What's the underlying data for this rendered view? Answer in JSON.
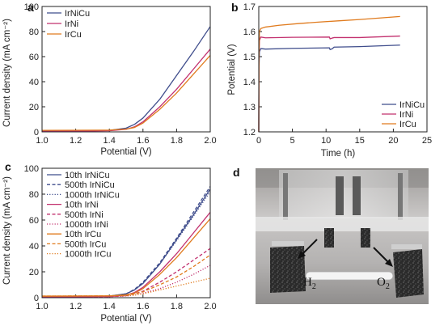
{
  "panels": [
    {
      "id": "a",
      "label": "a",
      "type": "line",
      "xlabel": "Potential (V)",
      "ylabel": "Current density (mA cm⁻²)",
      "xlim": [
        1.0,
        2.0
      ],
      "ylim": [
        0,
        100
      ],
      "xticks": [
        1.0,
        1.2,
        1.4,
        1.6,
        1.8,
        2.0
      ],
      "xtick_labels": [
        "1.0",
        "1.2",
        "1.4",
        "1.6",
        "1.8",
        "2.0"
      ],
      "yticks": [
        0,
        20,
        40,
        60,
        80,
        100
      ],
      "ytick_labels": [
        "0",
        "20",
        "40",
        "60",
        "80",
        "100"
      ],
      "legend_position": "top-left",
      "series": [
        {
          "name": "IrNiCu",
          "color": "#3f4d8c",
          "dash": "solid",
          "x": [
            1.0,
            1.2,
            1.4,
            1.5,
            1.55,
            1.6,
            1.7,
            1.8,
            1.9,
            2.0
          ],
          "y": [
            0.8,
            0.9,
            1.2,
            3,
            6,
            11,
            26,
            45,
            64,
            84
          ]
        },
        {
          "name": "IrNi",
          "color": "#c2306e",
          "dash": "solid",
          "x": [
            1.0,
            1.2,
            1.4,
            1.5,
            1.55,
            1.6,
            1.7,
            1.8,
            1.9,
            2.0
          ],
          "y": [
            0.5,
            0.6,
            0.9,
            2,
            4,
            8,
            20,
            34,
            50,
            66
          ]
        },
        {
          "name": "IrCu",
          "color": "#e07b1e",
          "dash": "solid",
          "x": [
            1.0,
            1.2,
            1.4,
            1.5,
            1.55,
            1.6,
            1.7,
            1.8,
            1.9,
            2.0
          ],
          "y": [
            1.2,
            1.3,
            1.4,
            2.2,
            3.5,
            7,
            18,
            31,
            46,
            61
          ]
        }
      ]
    },
    {
      "id": "b",
      "label": "b",
      "type": "line",
      "xlabel": "Time (h)",
      "ylabel": "Potential (V)",
      "xlim": [
        0,
        25
      ],
      "ylim": [
        1.2,
        1.7
      ],
      "xticks": [
        0,
        5,
        10,
        15,
        20,
        25
      ],
      "xtick_labels": [
        "0",
        "5",
        "10",
        "15",
        "20",
        "25"
      ],
      "yticks": [
        1.2,
        1.3,
        1.4,
        1.5,
        1.6,
        1.7
      ],
      "ytick_labels": [
        "1.2",
        "1.3",
        "1.4",
        "1.5",
        "1.6",
        "1.7"
      ],
      "legend_position": "bottom-right",
      "series": [
        {
          "name": "IrNiCu",
          "color": "#3f4d8c",
          "dash": "solid",
          "x": [
            0,
            0.03,
            0.1,
            0.3,
            1,
            5,
            10.5,
            10.6,
            10.9,
            11.2,
            15,
            21
          ],
          "y": [
            1.2,
            1.45,
            1.52,
            1.532,
            1.53,
            1.533,
            1.535,
            1.528,
            1.531,
            1.538,
            1.54,
            1.546
          ]
        },
        {
          "name": "IrNi",
          "color": "#c2306e",
          "dash": "solid",
          "x": [
            0,
            0.03,
            0.1,
            0.3,
            1,
            5,
            10.5,
            10.6,
            10.9,
            11.2,
            15,
            21
          ],
          "y": [
            1.2,
            1.5,
            1.565,
            1.578,
            1.575,
            1.577,
            1.578,
            1.571,
            1.574,
            1.576,
            1.576,
            1.582
          ]
        },
        {
          "name": "IrCu",
          "color": "#e07b1e",
          "dash": "solid",
          "x": [
            0,
            0.03,
            0.1,
            0.3,
            1,
            3,
            6,
            9,
            12,
            15,
            18,
            21
          ],
          "y": [
            1.2,
            1.5,
            1.6,
            1.612,
            1.618,
            1.625,
            1.632,
            1.638,
            1.643,
            1.648,
            1.654,
            1.66
          ]
        }
      ]
    },
    {
      "id": "c",
      "label": "c",
      "type": "line",
      "xlabel": "Potential (V)",
      "ylabel": "Current density (mA cm⁻²)",
      "xlim": [
        1.0,
        2.0
      ],
      "ylim": [
        0,
        100
      ],
      "xticks": [
        1.0,
        1.2,
        1.4,
        1.6,
        1.8,
        2.0
      ],
      "xtick_labels": [
        "1.0",
        "1.2",
        "1.4",
        "1.6",
        "1.8",
        "2.0"
      ],
      "yticks": [
        0,
        20,
        40,
        60,
        80,
        100
      ],
      "ytick_labels": [
        "0",
        "20",
        "40",
        "60",
        "80",
        "100"
      ],
      "legend_position": "top-left",
      "series": [
        {
          "name": "10th IrNiCu",
          "color": "#3f4d8c",
          "dash": "solid",
          "x": [
            1.0,
            1.2,
            1.4,
            1.5,
            1.55,
            1.6,
            1.7,
            1.8,
            1.9,
            2.0
          ],
          "y": [
            0.8,
            0.9,
            1.2,
            3,
            6,
            11,
            26,
            45,
            64,
            84
          ]
        },
        {
          "name": "500th IrNiCu",
          "color": "#3f4d8c",
          "dash": "dashed",
          "x": [
            1.0,
            1.2,
            1.4,
            1.5,
            1.55,
            1.6,
            1.7,
            1.8,
            1.9,
            2.0
          ],
          "y": [
            0.8,
            0.9,
            1.2,
            3,
            6.5,
            12,
            27,
            46,
            66,
            86
          ]
        },
        {
          "name": "1000th IrNiCu",
          "color": "#3f4d8c",
          "dash": "dotted",
          "x": [
            1.0,
            1.2,
            1.4,
            1.5,
            1.55,
            1.6,
            1.7,
            1.8,
            1.9,
            2.0
          ],
          "y": [
            0.8,
            0.9,
            1.2,
            3,
            6,
            11,
            26,
            44,
            63,
            82
          ]
        },
        {
          "name": "10th IrNi",
          "color": "#c2306e",
          "dash": "solid",
          "x": [
            1.0,
            1.2,
            1.4,
            1.5,
            1.55,
            1.6,
            1.7,
            1.8,
            1.9,
            2.0
          ],
          "y": [
            0.5,
            0.6,
            0.9,
            2,
            4,
            8,
            20,
            34,
            50,
            66
          ]
        },
        {
          "name": "500th IrNi",
          "color": "#c2306e",
          "dash": "dashed",
          "x": [
            1.0,
            1.2,
            1.4,
            1.5,
            1.55,
            1.6,
            1.7,
            1.8,
            1.9,
            2.0
          ],
          "y": [
            0.5,
            0.6,
            0.8,
            1.5,
            3,
            5,
            12,
            20,
            29,
            38
          ]
        },
        {
          "name": "1000th IrNi",
          "color": "#c2306e",
          "dash": "dotted",
          "x": [
            1.0,
            1.2,
            1.4,
            1.5,
            1.55,
            1.6,
            1.7,
            1.8,
            1.9,
            2.0
          ],
          "y": [
            0.5,
            0.6,
            0.8,
            1.2,
            2,
            3.5,
            7,
            12,
            18,
            25
          ]
        },
        {
          "name": "10th IrCu",
          "color": "#e07b1e",
          "dash": "solid",
          "x": [
            1.0,
            1.2,
            1.4,
            1.5,
            1.55,
            1.6,
            1.7,
            1.8,
            1.9,
            2.0
          ],
          "y": [
            1.2,
            1.3,
            1.4,
            2.2,
            3.5,
            7,
            18,
            31,
            46,
            61
          ]
        },
        {
          "name": "500th IrCu",
          "color": "#e07b1e",
          "dash": "dashed",
          "x": [
            1.0,
            1.2,
            1.4,
            1.5,
            1.55,
            1.6,
            1.7,
            1.8,
            1.9,
            2.0
          ],
          "y": [
            1.2,
            1.3,
            1.4,
            1.8,
            2.8,
            4.5,
            10,
            16,
            24,
            33
          ]
        },
        {
          "name": "1000th IrCu",
          "color": "#e07b1e",
          "dash": "dotted",
          "x": [
            1.0,
            1.2,
            1.4,
            1.5,
            1.55,
            1.6,
            1.7,
            1.8,
            1.9,
            2.0
          ],
          "y": [
            1.2,
            1.3,
            1.3,
            1.5,
            2,
            3,
            6,
            9,
            12,
            15
          ]
        }
      ]
    }
  ],
  "photo": {
    "label": "d",
    "h2_label": "H",
    "h2_sub": "2",
    "o2_label": "O",
    "o2_sub": "2"
  }
}
